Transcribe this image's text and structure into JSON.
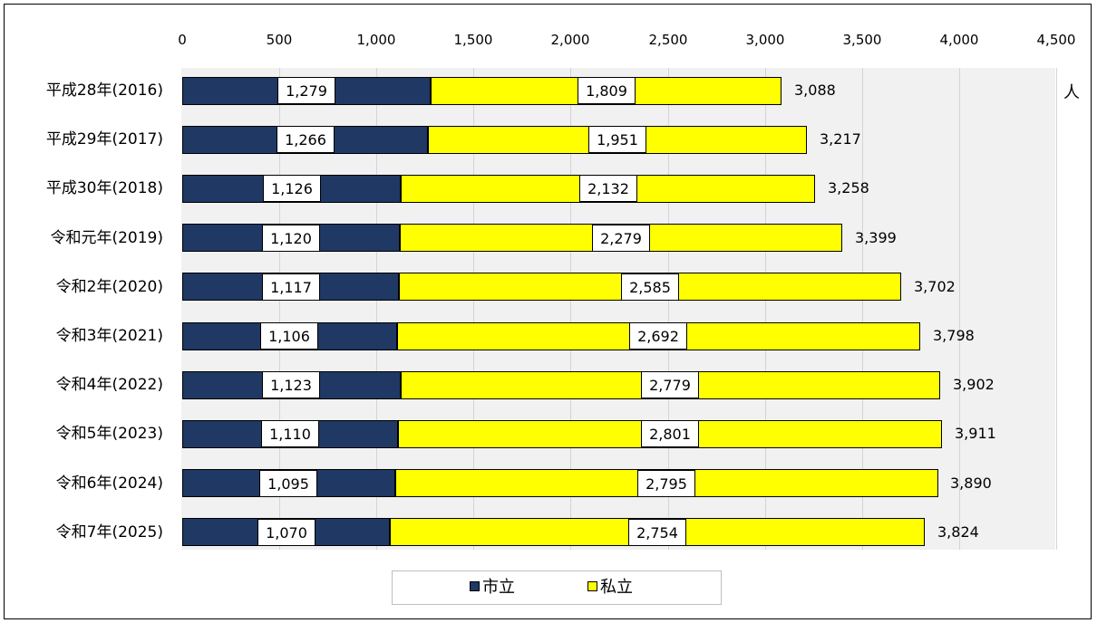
{
  "chart_data": {
    "type": "bar",
    "orientation": "horizontal",
    "stacked": true,
    "categories": [
      "平成28年(2016)",
      "平成29年(2017)",
      "平成30年(2018)",
      "令和元年(2019)",
      "令和2年(2020)",
      "令和3年(2021)",
      "令和4年(2022)",
      "令和5年(2023)",
      "令和6年(2024)",
      "令和7年(2025)"
    ],
    "series": [
      {
        "name": "市立",
        "color": "#1f3864",
        "values": [
          1279,
          1266,
          1126,
          1120,
          1117,
          1106,
          1123,
          1110,
          1095,
          1070
        ],
        "labels": [
          "1,279",
          "1,266",
          "1,126",
          "1,120",
          "1,117",
          "1,106",
          "1,123",
          "1,110",
          "1,095",
          "1,070"
        ]
      },
      {
        "name": "私立",
        "color": "#ffff00",
        "values": [
          1809,
          1951,
          2132,
          2279,
          2585,
          2692,
          2779,
          2801,
          2795,
          2754
        ],
        "labels": [
          "1,809",
          "1,951",
          "2,132",
          "2,279",
          "2,585",
          "2,692",
          "2,779",
          "2,801",
          "2,795",
          "2,754"
        ]
      }
    ],
    "totals": [
      3088,
      3217,
      3258,
      3399,
      3702,
      3798,
      3902,
      3911,
      3890,
      3824
    ],
    "total_labels": [
      "3,088",
      "3,217",
      "3,258",
      "3,399",
      "3,702",
      "3,798",
      "3,902",
      "3,911",
      "3,890",
      "3,824"
    ],
    "xlim": [
      0,
      4500
    ],
    "xticks": [
      0,
      500,
      1000,
      1500,
      2000,
      2500,
      3000,
      3500,
      4000,
      4500
    ],
    "xtick_labels": [
      "0",
      "500",
      "1,000",
      "1,500",
      "2,000",
      "2,500",
      "3,000",
      "3,500",
      "4,000",
      "4,500"
    ],
    "xaxis_position": "top",
    "unit_label": "人",
    "grid": true,
    "legend_position": "bottom"
  },
  "legend": {
    "city": "市立",
    "private": "私立"
  }
}
